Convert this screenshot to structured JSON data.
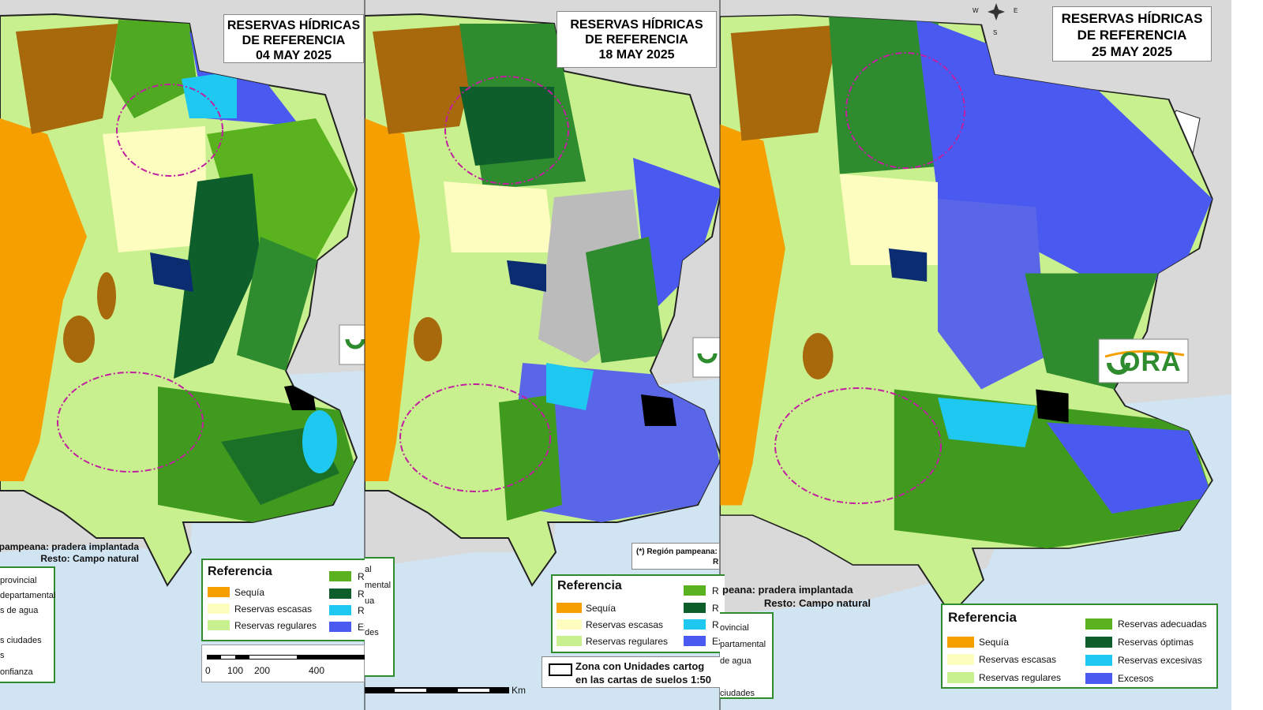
{
  "panels": [
    {
      "title": [
        "RESERVAS HÍDRICAS",
        "DE REFERENCIA",
        "04 MAY 2025"
      ],
      "note": [
        "pampeana: pradera implantada",
        "Resto: Campo natural"
      ],
      "legend": {
        "title": "Referencia",
        "items": [
          "Sequía",
          "Reservas escasas",
          "Reservas regulares",
          "R",
          "R",
          "R",
          "Ex"
        ]
      },
      "side_legend": [
        "provincial",
        "departamental",
        "s de agua",
        "s ciudades",
        "s",
        "onfianza"
      ],
      "scale": [
        "0",
        "100",
        "200",
        "400"
      ]
    },
    {
      "title": [
        "RESERVAS HÍDRICAS",
        "DE REFERENCIA",
        "18 MAY 2025"
      ],
      "note": [
        "(*) Región pampeana:",
        "R"
      ],
      "legend": {
        "title": "Referencia",
        "items": [
          "Sequía",
          "Reservas escasas",
          "Reservas regulares",
          "R",
          "R",
          "R",
          "Ex"
        ]
      },
      "side_legend": [
        "al",
        "mental",
        "ua",
        "des"
      ],
      "zone_note": [
        "Zona con Unidades cartog",
        "en las cartas de suelos 1:50"
      ],
      "scale_unit": "Km"
    },
    {
      "title": [
        "RESERVAS HÍDRICAS",
        "DE REFERENCIA",
        "25 MAY 2025"
      ],
      "compass": [
        "W",
        "E",
        "S"
      ],
      "note": [
        "peana: pradera implantada",
        "Resto: Campo natural"
      ],
      "legend": {
        "title": "Referencia",
        "items": [
          "Sequía",
          "Reservas escasas",
          "Reservas regulares",
          "Reservas adecuadas",
          "Reservas óptimas",
          "Reservas excesivas",
          "Excesos"
        ]
      },
      "side_legend": [
        "ovincial",
        "partamental",
        "de agua",
        "ciudades"
      ],
      "logo": "ORA"
    }
  ]
}
